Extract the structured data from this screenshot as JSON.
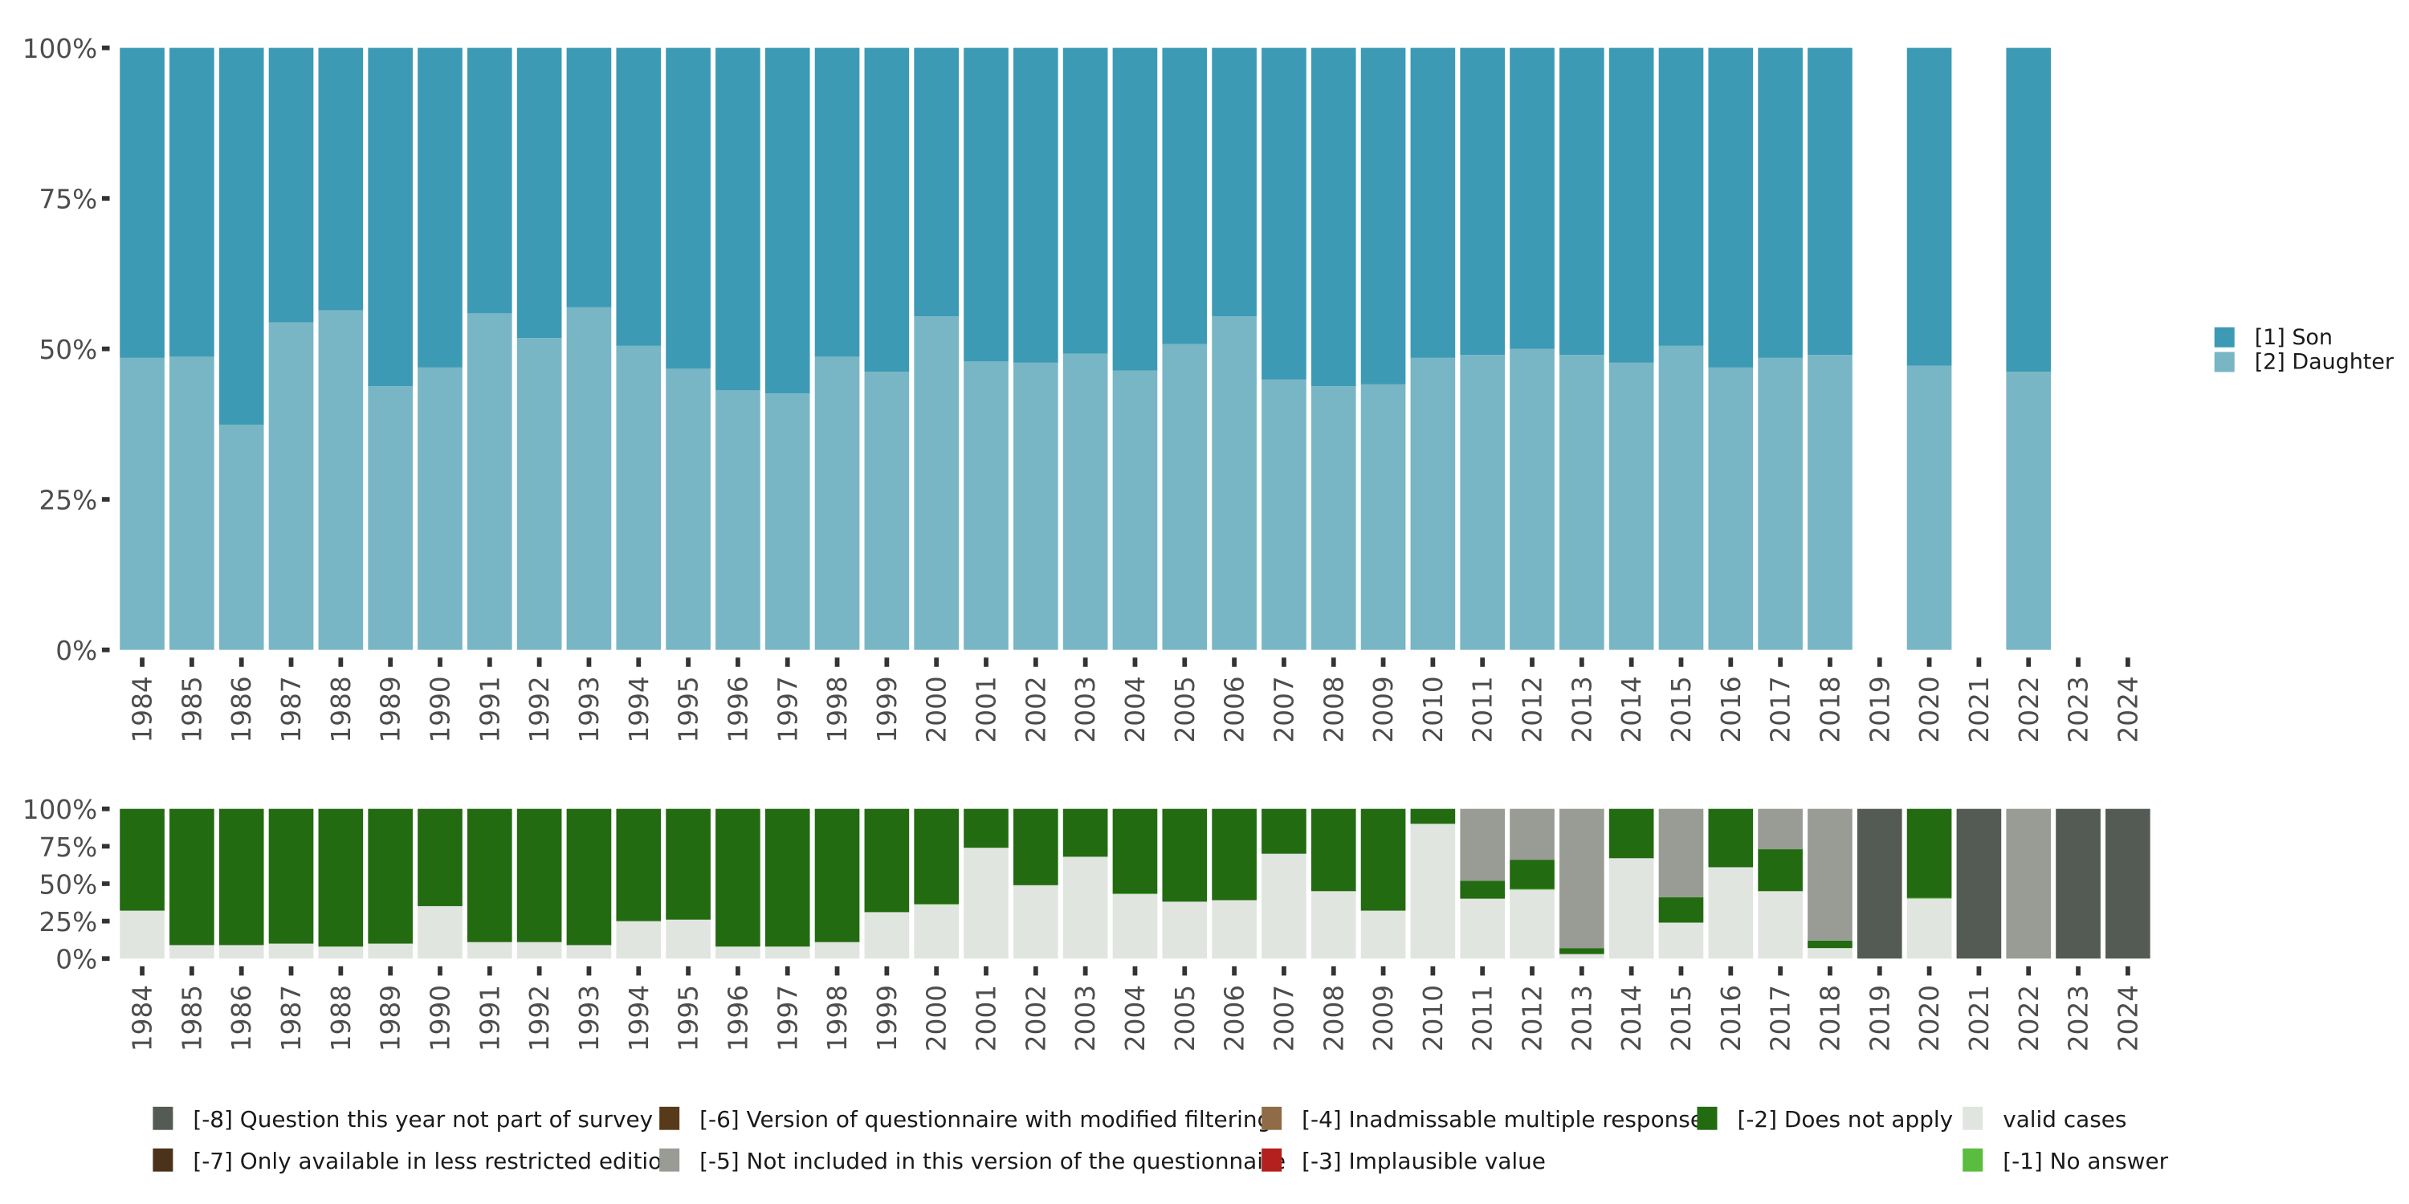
{
  "chart_data": [
    {
      "type": "bar",
      "stacked": true,
      "normalized": true,
      "title": "",
      "xlabel": "",
      "ylabel": "",
      "ylim": [
        0,
        100
      ],
      "y_ticks": [
        "0%",
        "25%",
        "50%",
        "75%",
        "100%"
      ],
      "grid": false,
      "legend_position": "right",
      "categories": [
        "1984",
        "1985",
        "1986",
        "1987",
        "1988",
        "1989",
        "1990",
        "1991",
        "1992",
        "1993",
        "1994",
        "1995",
        "1996",
        "1997",
        "1998",
        "1999",
        "2000",
        "2001",
        "2002",
        "2003",
        "2004",
        "2005",
        "2006",
        "2007",
        "2008",
        "2009",
        "2010",
        "2011",
        "2012",
        "2013",
        "2014",
        "2015",
        "2016",
        "2017",
        "2018",
        "2019",
        "2020",
        "2021",
        "2022",
        "2023",
        "2024"
      ],
      "series": [
        {
          "name": "[2] Daughter",
          "color": "#78b6c5",
          "values": [
            48.5,
            48.7,
            37.4,
            54.4,
            56.4,
            43.8,
            46.9,
            55.9,
            51.8,
            56.9,
            50.5,
            46.7,
            43.1,
            42.6,
            48.7,
            46.2,
            55.4,
            47.9,
            47.7,
            49.2,
            46.4,
            50.8,
            55.4,
            44.9,
            43.8,
            44.1,
            48.5,
            49.0,
            50.0,
            49.0,
            47.7,
            50.5,
            46.9,
            48.5,
            49.0,
            null,
            47.2,
            null,
            46.2,
            null,
            null
          ]
        },
        {
          "name": "[1] Son",
          "color": "#3d9ab4",
          "values": [
            51.5,
            51.3,
            62.6,
            45.6,
            43.6,
            56.2,
            53.1,
            44.1,
            48.2,
            43.1,
            49.5,
            53.3,
            56.9,
            57.4,
            51.3,
            53.8,
            44.6,
            52.1,
            52.3,
            50.8,
            53.6,
            49.2,
            44.6,
            55.1,
            56.2,
            55.9,
            51.5,
            51.0,
            50.0,
            51.0,
            52.3,
            49.5,
            53.1,
            51.5,
            51.0,
            null,
            52.8,
            null,
            53.8,
            null,
            null
          ]
        }
      ],
      "legend": [
        {
          "label": "[1] Son",
          "color": "#3d9ab4"
        },
        {
          "label": "[2] Daughter",
          "color": "#78b6c5"
        }
      ]
    },
    {
      "type": "bar",
      "stacked": true,
      "normalized": true,
      "title": "",
      "xlabel": "",
      "ylabel": "",
      "ylim": [
        0,
        100
      ],
      "y_ticks": [
        "0%",
        "25%",
        "50%",
        "75%",
        "100%"
      ],
      "grid": false,
      "legend_position": "bottom",
      "categories": [
        "1984",
        "1985",
        "1986",
        "1987",
        "1988",
        "1989",
        "1990",
        "1991",
        "1992",
        "1993",
        "1994",
        "1995",
        "1996",
        "1997",
        "1998",
        "1999",
        "2000",
        "2001",
        "2002",
        "2003",
        "2004",
        "2005",
        "2006",
        "2007",
        "2008",
        "2009",
        "2010",
        "2011",
        "2012",
        "2013",
        "2014",
        "2015",
        "2016",
        "2017",
        "2018",
        "2019",
        "2020",
        "2021",
        "2022",
        "2023",
        "2024"
      ],
      "series": [
        {
          "name": "valid cases",
          "color": "#e1e5e0",
          "values": [
            32,
            9,
            9,
            10,
            8,
            10,
            35,
            11,
            11,
            9,
            25,
            26,
            8,
            8,
            11,
            31,
            36,
            74,
            49,
            68,
            43,
            38,
            39,
            70,
            45,
            32,
            90,
            40,
            46,
            3,
            67,
            24,
            61,
            45,
            7,
            0,
            40,
            0,
            0,
            0,
            0
          ]
        },
        {
          "name": "[-1] No answer",
          "color": "#5bbd3f",
          "values": [
            0,
            0,
            0,
            0,
            0,
            0,
            0,
            0,
            0,
            0,
            0,
            0,
            0,
            0,
            0,
            0,
            0.5,
            0,
            0,
            0,
            0.5,
            0,
            0,
            0,
            0,
            0,
            0,
            0,
            0.5,
            0,
            0,
            0,
            0,
            0,
            0,
            0,
            0.5,
            0,
            0,
            0,
            0
          ]
        },
        {
          "name": "[-2] Does not apply",
          "color": "#226b11",
          "values": [
            68,
            91,
            91,
            90,
            92,
            90,
            65,
            89,
            89,
            91,
            75,
            74,
            92,
            92,
            89,
            69,
            63.5,
            26,
            51,
            32,
            56.5,
            62,
            61,
            30,
            55,
            68,
            10,
            12,
            19.5,
            4,
            33,
            17,
            39,
            28,
            5,
            0,
            59.5,
            0,
            0,
            0,
            0
          ]
        },
        {
          "name": "[-3] Implausible value",
          "color": "#b3201d",
          "values": [
            0,
            0,
            0,
            0,
            0,
            0,
            0,
            0,
            0,
            0,
            0,
            0,
            0,
            0,
            0,
            0,
            0,
            0,
            0,
            0,
            0,
            0,
            0,
            0,
            0,
            0,
            0,
            0,
            0,
            0,
            0,
            0,
            0,
            0,
            0,
            0,
            0,
            0,
            0,
            0,
            0
          ]
        },
        {
          "name": "[-4] Inadmissable multiple response",
          "color": "#8f6c47",
          "values": [
            0,
            0,
            0,
            0,
            0,
            0,
            0,
            0,
            0,
            0,
            0,
            0,
            0,
            0,
            0,
            0,
            0,
            0,
            0,
            0,
            0,
            0,
            0,
            0,
            0,
            0,
            0,
            0,
            0,
            0,
            0,
            0,
            0,
            0,
            0,
            0,
            0,
            0,
            0,
            0,
            0
          ]
        },
        {
          "name": "[-5] Not included in this version of the questionnaire",
          "color": "#989c94",
          "values": [
            0,
            0,
            0,
            0,
            0,
            0,
            0,
            0,
            0,
            0,
            0,
            0,
            0,
            0,
            0,
            0,
            0,
            0,
            0,
            0,
            0,
            0,
            0,
            0,
            0,
            0,
            0,
            48,
            34,
            93,
            0,
            59,
            0,
            27,
            88,
            0,
            0,
            0,
            100,
            0,
            0
          ]
        },
        {
          "name": "[-6] Version of questionnaire with modified filtering",
          "color": "#573a1a",
          "values": [
            0,
            0,
            0,
            0,
            0,
            0,
            0,
            0,
            0,
            0,
            0,
            0,
            0,
            0,
            0,
            0,
            0,
            0,
            0,
            0,
            0,
            0,
            0,
            0,
            0,
            0,
            0,
            0,
            0,
            0,
            0,
            0,
            0,
            0,
            0,
            0,
            0,
            0,
            0,
            0,
            0
          ]
        },
        {
          "name": "[-7] Only available in less restricted edition",
          "color": "#4a321b",
          "values": [
            0,
            0,
            0,
            0,
            0,
            0,
            0,
            0,
            0,
            0,
            0,
            0,
            0,
            0,
            0,
            0,
            0,
            0,
            0,
            0,
            0,
            0,
            0,
            0,
            0,
            0,
            0,
            0,
            0,
            0,
            0,
            0,
            0,
            0,
            0,
            0,
            0,
            0,
            0,
            0,
            0
          ]
        },
        {
          "name": "[-8] Question this year not part of survey",
          "color": "#535b54",
          "values": [
            0,
            0,
            0,
            0,
            0,
            0,
            0,
            0,
            0,
            0,
            0,
            0,
            0,
            0,
            0,
            0,
            0,
            0,
            0,
            0,
            0,
            0,
            0,
            0,
            0,
            0,
            0,
            0,
            0,
            0,
            0,
            0,
            0,
            0,
            0,
            100,
            0,
            100,
            0,
            100,
            100
          ]
        }
      ],
      "legend": [
        {
          "label": "[-8] Question this year not part of survey",
          "color": "#535b54"
        },
        {
          "label": "[-6] Version of questionnaire with modified filtering",
          "color": "#573a1a"
        },
        {
          "label": "[-4] Inadmissable multiple response",
          "color": "#8f6c47"
        },
        {
          "label": "[-2] Does not apply",
          "color": "#226b11"
        },
        {
          "label": "valid cases",
          "color": "#e1e5e0"
        },
        {
          "label": "[-7] Only available in less restricted edition",
          "color": "#4a321b"
        },
        {
          "label": "[-5] Not included in this version of the questionnaire",
          "color": "#989c94"
        },
        {
          "label": "[-3] Implausible value",
          "color": "#b3201d"
        },
        {
          "label": "",
          "color": ""
        },
        {
          "label": "[-1] No answer",
          "color": "#5bbd3f"
        }
      ]
    }
  ]
}
